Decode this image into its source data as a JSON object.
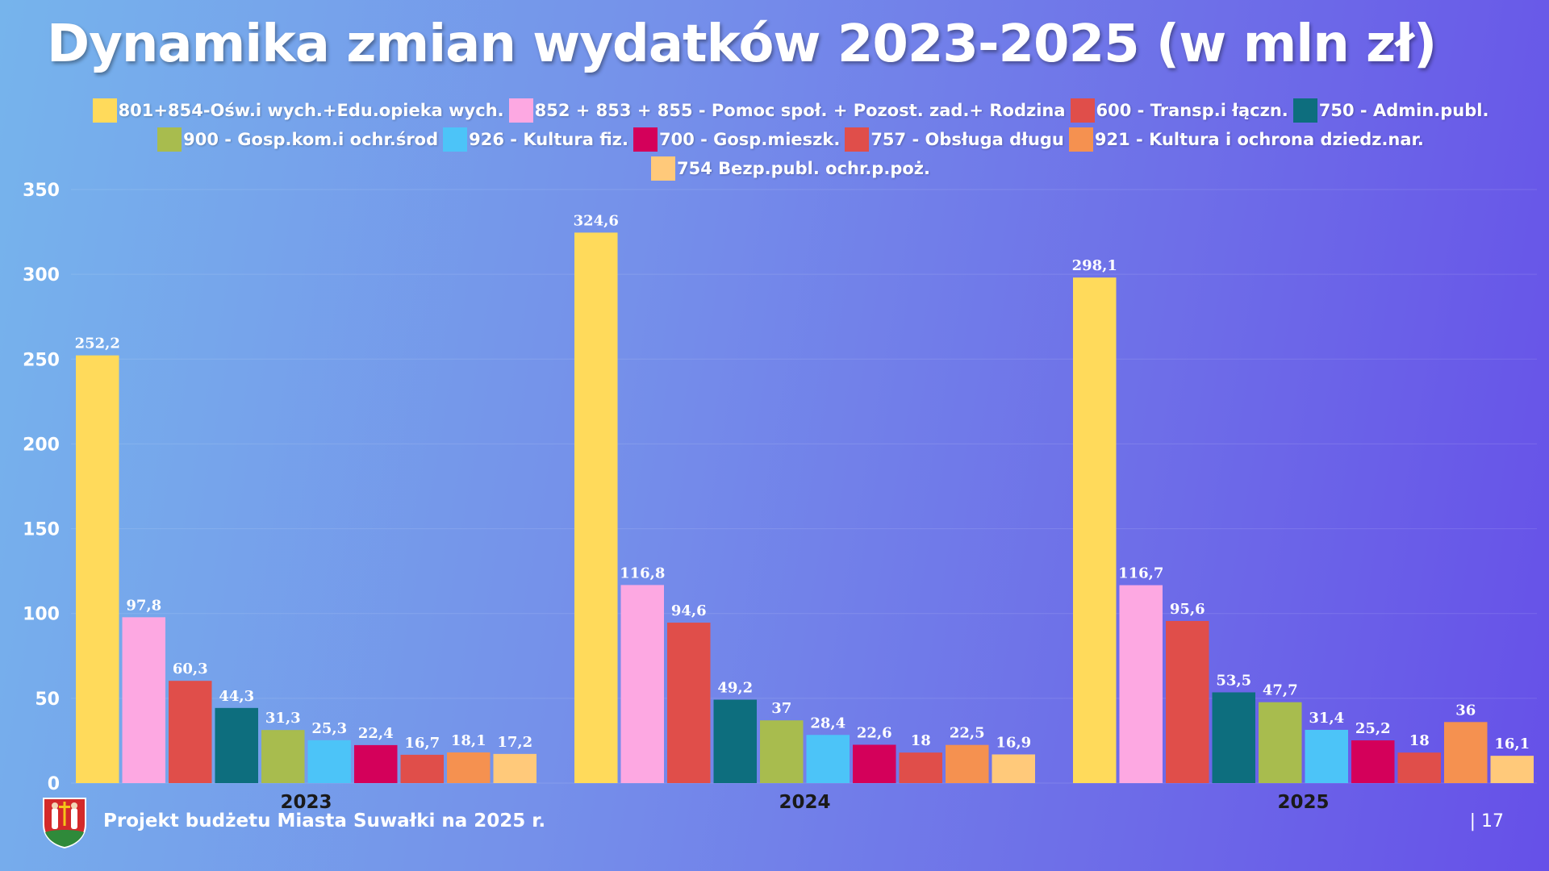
{
  "title": "Dynamika zmian wydatków 2023-2025 (w mln zł)",
  "footer": {
    "text": "Projekt budżetu Miasta Suwałki na 2025 r.",
    "page": "| 17"
  },
  "chart_data": {
    "type": "bar",
    "title": "Dynamika zmian wydatków 2023-2025 (w mln zł)",
    "xlabel": "",
    "ylabel": "",
    "ylim": [
      0,
      350
    ],
    "yticks": [
      0,
      50,
      100,
      150,
      200,
      250,
      300,
      350
    ],
    "grid": true,
    "legend_position": "top",
    "categories": [
      "2023",
      "2024",
      "2025"
    ],
    "series": [
      {
        "name": "801+854-Ośw.i wych.+Edu.opieka wych.",
        "color": "#FFDA5B",
        "values": [
          252.2,
          324.6,
          298.1
        ],
        "labels": [
          "252,2",
          "324,6",
          "298,1"
        ]
      },
      {
        "name": "852 + 853 + 855 - Pomoc społ. + Pozost. zad.+ Rodzina",
        "color": "#FDA8E2",
        "values": [
          97.8,
          116.8,
          116.7
        ],
        "labels": [
          "97,8",
          "116,8",
          "116,7"
        ]
      },
      {
        "name": "600 - Transp.i łączn.",
        "color": "#E04E4A",
        "values": [
          60.3,
          94.6,
          95.6
        ],
        "labels": [
          "60,3",
          "94,6",
          "95,6"
        ]
      },
      {
        "name": "750 - Admin.publ.",
        "color": "#0D6E7E",
        "values": [
          44.3,
          49.2,
          53.5
        ],
        "labels": [
          "44,3",
          "49,2",
          "53,5"
        ]
      },
      {
        "name": "900 - Gosp.kom.i ochr.środ",
        "color": "#A8BC4E",
        "values": [
          31.3,
          37,
          47.7
        ],
        "labels": [
          "31,3",
          "37",
          "47,7"
        ]
      },
      {
        "name": "926 - Kultura fiz.",
        "color": "#4CC4F8",
        "values": [
          25.3,
          28.4,
          31.4
        ],
        "labels": [
          "25,3",
          "28,4",
          "31,4"
        ]
      },
      {
        "name": "700 - Gosp.mieszk.",
        "color": "#D4005A",
        "values": [
          22.4,
          22.6,
          25.2
        ],
        "labels": [
          "22,4",
          "22,6",
          "25,2"
        ]
      },
      {
        "name": "757 - Obsługa długu",
        "color": "#E04E4A",
        "values": [
          16.7,
          18,
          18
        ],
        "labels": [
          "16,7",
          "18",
          "18"
        ]
      },
      {
        "name": "921 - Kultura i ochrona dziedz.nar.",
        "color": "#F59150",
        "values": [
          18.1,
          22.5,
          36
        ],
        "labels": [
          "18,1",
          "22,5",
          "36"
        ]
      },
      {
        "name": "754 Bezp.publ. ochr.p.poż.",
        "color": "#FFC97A",
        "values": [
          17.2,
          16.9,
          16.1
        ],
        "labels": [
          "17,2",
          "16,9",
          "16,1"
        ]
      }
    ]
  }
}
